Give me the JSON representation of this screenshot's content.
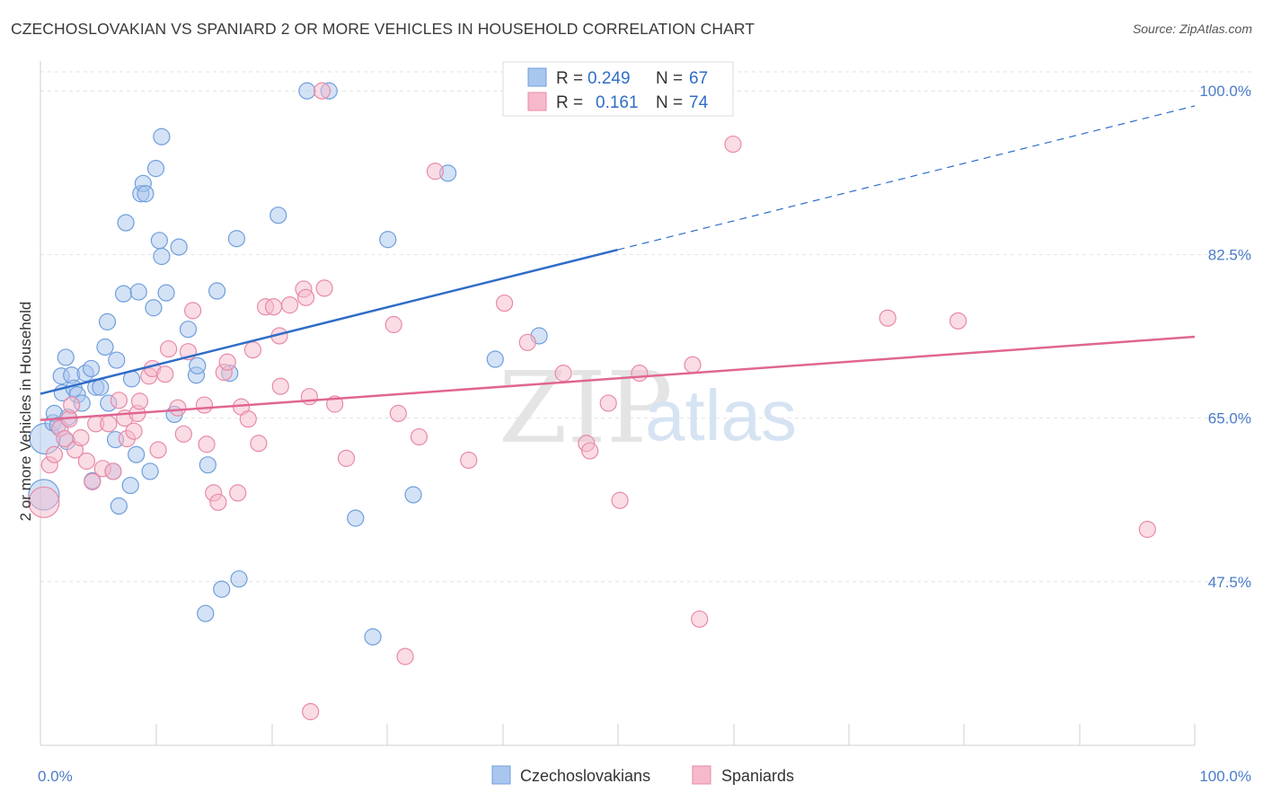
{
  "header": {
    "title": "CZECHOSLOVAKIAN VS SPANIARD 2 OR MORE VEHICLES IN HOUSEHOLD CORRELATION CHART",
    "source": "Source: ZipAtlas.com"
  },
  "watermark": {
    "zip": "ZIP",
    "atlas": "atlas"
  },
  "legend": {
    "r_label": "R =",
    "n_label": "N =",
    "entries": [
      {
        "r": "0.249",
        "n": "67",
        "color": "#a9c6ee",
        "stroke": "#6f9fdc"
      },
      {
        "r": "0.161",
        "n": "74",
        "color": "#f6b9cb",
        "stroke": "#e88aa6"
      }
    ]
  },
  "bottom_legend": [
    {
      "label": "Czechoslovakians",
      "color": "#a9c6ee",
      "stroke": "#6f9fdc"
    },
    {
      "label": "Spaniards",
      "color": "#f6b9cb",
      "stroke": "#e88aa6"
    }
  ],
  "chart_data": {
    "type": "scatter",
    "title": "CZECHOSLOVAKIAN VS SPANIARD 2 OR MORE VEHICLES IN HOUSEHOLD CORRELATION CHART",
    "xlabel": "",
    "ylabel": "2 or more Vehicles in Household",
    "xlim": [
      0,
      100
    ],
    "ylim": [
      30,
      103
    ],
    "x_tick_labels": [
      "0.0%",
      "100.0%"
    ],
    "y_ticks": [
      47.5,
      65.0,
      82.5,
      100.0
    ],
    "y_tick_labels": [
      "47.5%",
      "65.0%",
      "82.5%",
      "100.0%"
    ],
    "grid": true,
    "colors": {
      "blue": "#2f6dc8",
      "pink": "#e06690"
    },
    "series": [
      {
        "name": "Czechoslovakians",
        "color": "#a9c6ee",
        "stroke": "#6f9fdc",
        "trend": {
          "x0": 0,
          "y0": 67.6,
          "x1": 50,
          "y1": 83.0,
          "dash_x1": 100,
          "dash_y1": 98.4,
          "color": "#2f6dc8"
        },
        "points": [
          [
            0.3,
            56.8
          ],
          [
            0.4,
            62.8
          ],
          [
            1.1,
            64.5
          ],
          [
            1.2,
            65.5
          ],
          [
            1.5,
            64.2
          ],
          [
            1.8,
            69.5
          ],
          [
            1.9,
            67.7
          ],
          [
            2.2,
            71.5
          ],
          [
            2.3,
            62.5
          ],
          [
            2.4,
            65.1
          ],
          [
            2.7,
            69.6
          ],
          [
            2.9,
            68.2
          ],
          [
            3.2,
            67.5
          ],
          [
            3.6,
            66.6
          ],
          [
            3.9,
            69.8
          ],
          [
            4.4,
            70.3
          ],
          [
            4.5,
            58.3
          ],
          [
            4.8,
            68.3
          ],
          [
            5.2,
            68.3
          ],
          [
            5.6,
            72.6
          ],
          [
            5.8,
            75.3
          ],
          [
            5.9,
            66.6
          ],
          [
            6.3,
            59.3
          ],
          [
            6.5,
            62.7
          ],
          [
            6.6,
            71.2
          ],
          [
            6.8,
            55.6
          ],
          [
            7.2,
            78.3
          ],
          [
            7.4,
            85.9
          ],
          [
            7.8,
            57.8
          ],
          [
            7.9,
            69.2
          ],
          [
            8.3,
            61.1
          ],
          [
            8.5,
            78.5
          ],
          [
            8.7,
            89.0
          ],
          [
            8.9,
            90.1
          ],
          [
            9.1,
            89.0
          ],
          [
            9.5,
            59.3
          ],
          [
            9.8,
            76.8
          ],
          [
            10.0,
            91.7
          ],
          [
            10.3,
            84.0
          ],
          [
            10.5,
            95.1
          ],
          [
            10.5,
            82.3
          ],
          [
            10.9,
            78.4
          ],
          [
            11.6,
            65.4
          ],
          [
            12.0,
            83.3
          ],
          [
            12.8,
            74.5
          ],
          [
            13.5,
            69.6
          ],
          [
            13.6,
            70.6
          ],
          [
            14.3,
            44.1
          ],
          [
            14.5,
            60.0
          ],
          [
            15.3,
            78.6
          ],
          [
            15.7,
            46.7
          ],
          [
            16.4,
            69.8
          ],
          [
            17.0,
            84.2
          ],
          [
            17.2,
            47.8
          ],
          [
            20.6,
            86.7
          ],
          [
            23.1,
            100.0
          ],
          [
            25.0,
            100.0
          ],
          [
            27.3,
            54.3
          ],
          [
            28.8,
            41.6
          ],
          [
            30.1,
            84.1
          ],
          [
            32.3,
            56.8
          ],
          [
            35.3,
            91.2
          ],
          [
            39.4,
            71.3
          ],
          [
            43.2,
            73.8
          ],
          [
            46.5,
            100.0
          ],
          [
            46.9,
            100.0
          ],
          [
            50.5,
            99.9
          ]
        ]
      },
      {
        "name": "Spaniards",
        "color": "#f6b9cb",
        "stroke": "#e88aa6",
        "trend": {
          "x0": 0,
          "y0": 64.8,
          "x1": 100,
          "y1": 73.7,
          "color": "#e06690"
        },
        "points": [
          [
            0.3,
            56.0
          ],
          [
            0.8,
            60.0
          ],
          [
            1.2,
            61.1
          ],
          [
            1.7,
            63.9
          ],
          [
            2.1,
            62.8
          ],
          [
            2.5,
            64.9
          ],
          [
            2.7,
            66.4
          ],
          [
            3.0,
            61.6
          ],
          [
            3.5,
            62.9
          ],
          [
            4.0,
            60.4
          ],
          [
            4.5,
            58.2
          ],
          [
            4.8,
            64.4
          ],
          [
            5.4,
            59.6
          ],
          [
            5.9,
            64.4
          ],
          [
            6.3,
            59.3
          ],
          [
            6.8,
            66.9
          ],
          [
            7.3,
            65.0
          ],
          [
            7.5,
            62.8
          ],
          [
            8.1,
            63.6
          ],
          [
            8.4,
            65.5
          ],
          [
            8.6,
            66.8
          ],
          [
            9.4,
            69.5
          ],
          [
            9.7,
            70.3
          ],
          [
            10.2,
            61.6
          ],
          [
            10.8,
            69.7
          ],
          [
            11.1,
            72.4
          ],
          [
            11.9,
            66.1
          ],
          [
            12.4,
            63.3
          ],
          [
            12.8,
            72.1
          ],
          [
            13.2,
            76.5
          ],
          [
            14.2,
            66.4
          ],
          [
            14.4,
            62.2
          ],
          [
            15.0,
            57.0
          ],
          [
            15.4,
            56.0
          ],
          [
            15.9,
            69.9
          ],
          [
            16.2,
            71.0
          ],
          [
            17.1,
            57.0
          ],
          [
            17.4,
            66.2
          ],
          [
            18.0,
            64.9
          ],
          [
            18.4,
            72.3
          ],
          [
            18.9,
            62.3
          ],
          [
            19.5,
            76.9
          ],
          [
            20.2,
            76.9
          ],
          [
            20.7,
            73.8
          ],
          [
            20.8,
            68.4
          ],
          [
            21.6,
            77.1
          ],
          [
            22.8,
            78.8
          ],
          [
            23.0,
            77.9
          ],
          [
            23.3,
            67.3
          ],
          [
            23.4,
            33.6
          ],
          [
            24.4,
            100.0
          ],
          [
            24.6,
            78.9
          ],
          [
            25.5,
            66.5
          ],
          [
            26.5,
            60.7
          ],
          [
            30.6,
            75.0
          ],
          [
            31.0,
            65.5
          ],
          [
            31.6,
            39.5
          ],
          [
            32.8,
            63.0
          ],
          [
            34.2,
            91.4
          ],
          [
            37.1,
            60.5
          ],
          [
            40.2,
            77.3
          ],
          [
            42.2,
            73.1
          ],
          [
            45.3,
            69.8
          ],
          [
            47.3,
            62.3
          ],
          [
            47.6,
            61.5
          ],
          [
            49.2,
            66.6
          ],
          [
            50.2,
            56.2
          ],
          [
            51.9,
            69.8
          ],
          [
            56.5,
            70.7
          ],
          [
            57.1,
            43.5
          ],
          [
            60.0,
            94.3
          ],
          [
            73.4,
            75.7
          ],
          [
            79.5,
            75.4
          ],
          [
            95.9,
            53.1
          ]
        ]
      }
    ]
  }
}
